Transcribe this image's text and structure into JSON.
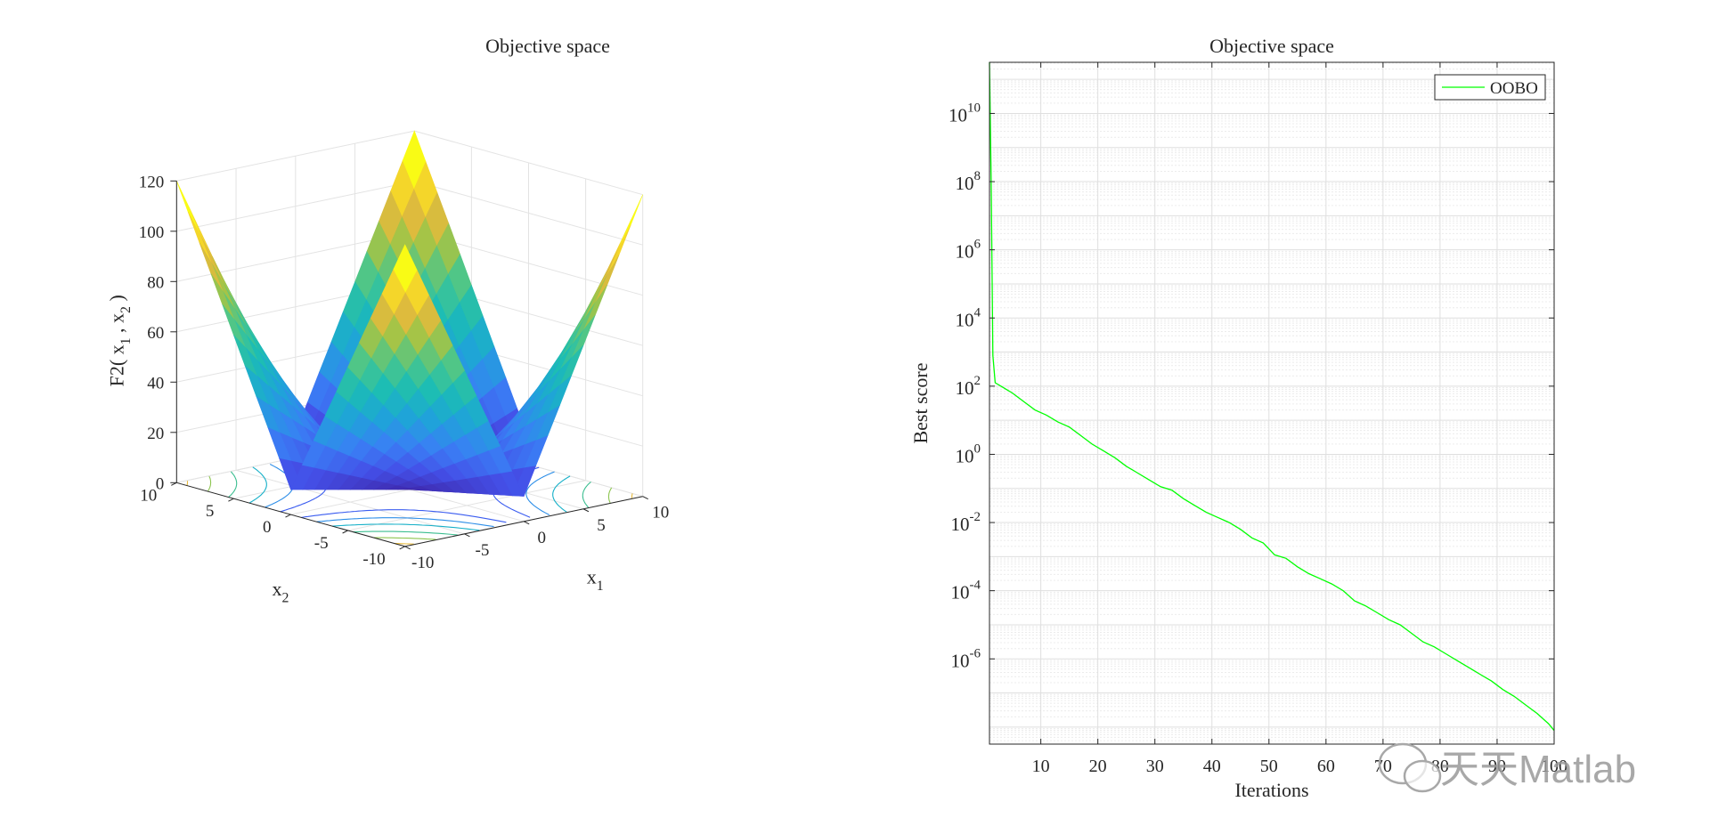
{
  "chart_data": [
    {
      "type": "surface3d",
      "title": "Objective space",
      "zlabel": "F2( x_1 , x_2 )",
      "xlabel": "x_1",
      "ylabel": "x_2",
      "x_ticks": [
        "-10",
        "-5",
        "0",
        "5",
        "10"
      ],
      "y_ticks": [
        "-10",
        "-5",
        "0",
        "5",
        "10"
      ],
      "z_ticks": [
        "0",
        "20",
        "40",
        "60",
        "80",
        "100",
        "120"
      ],
      "xlim": [
        -10,
        10
      ],
      "ylim": [
        -10,
        10
      ],
      "zlim": [
        0,
        120
      ],
      "function": "|x1| + |x2| + |x1|*|x2|",
      "grid": true,
      "colormap": "parula",
      "contours_on_floor": true
    },
    {
      "type": "line",
      "title": "Objective space",
      "xlabel": "Iterations",
      "ylabel": "Best score",
      "yscale": "log",
      "xlim": [
        1,
        100
      ],
      "ylim_exp": [
        -8.5,
        11.5
      ],
      "x_ticks": [
        "10",
        "20",
        "30",
        "40",
        "50",
        "60",
        "70",
        "80",
        "90",
        "100"
      ],
      "y_tick_exponents": [
        "10",
        "8",
        "6",
        "4",
        "2",
        "0",
        "-2",
        "-4",
        "-6"
      ],
      "y_tick_base": "10",
      "grid": true,
      "legend_position": "top-right",
      "series": [
        {
          "name": "OOBO",
          "color": "#00ff00",
          "x": [
            1,
            1.3,
            1.6,
            2,
            3,
            4,
            5,
            7,
            9,
            11,
            13,
            15,
            17,
            19,
            21,
            23,
            25,
            27,
            29,
            31,
            33,
            35,
            37,
            39,
            41,
            43,
            45,
            47,
            49,
            51,
            53,
            55,
            57,
            59,
            61,
            63,
            65,
            67,
            69,
            71,
            73,
            75,
            77,
            79,
            81,
            83,
            85,
            87,
            89,
            91,
            93,
            95,
            97,
            99,
            100
          ],
          "log10_y": [
            11.5,
            8.0,
            2.9,
            2.1,
            2.0,
            1.9,
            1.8,
            1.55,
            1.3,
            1.15,
            0.95,
            0.8,
            0.55,
            0.3,
            0.1,
            -0.1,
            -0.35,
            -0.55,
            -0.75,
            -0.95,
            -1.05,
            -1.3,
            -1.5,
            -1.7,
            -1.85,
            -2.0,
            -2.2,
            -2.45,
            -2.6,
            -2.95,
            -3.05,
            -3.3,
            -3.5,
            -3.65,
            -3.8,
            -4.0,
            -4.3,
            -4.45,
            -4.65,
            -4.85,
            -5.0,
            -5.25,
            -5.5,
            -5.65,
            -5.85,
            -6.05,
            -6.25,
            -6.45,
            -6.65,
            -6.9,
            -7.1,
            -7.35,
            -7.6,
            -7.9,
            -8.1
          ]
        }
      ]
    }
  ],
  "watermark": {
    "brand": "天天Matlab",
    "platform": "wechat-icon"
  },
  "colors": {
    "series": "#00ff00",
    "axis": "#262626",
    "grid": "#dfdfdf",
    "background": "#ffffff"
  }
}
